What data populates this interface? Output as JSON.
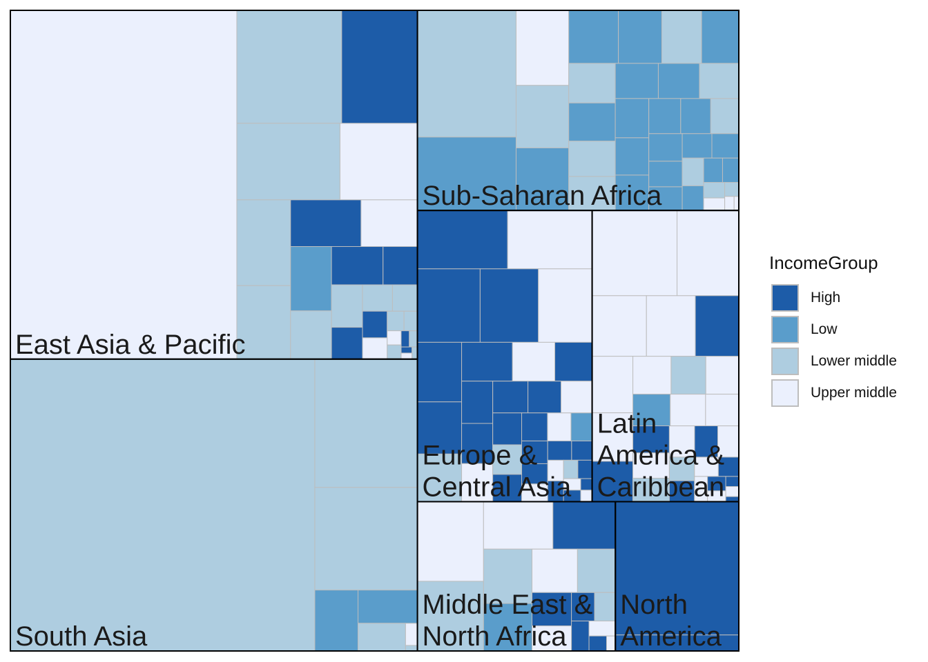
{
  "chart_data": {
    "type": "treemap",
    "legend": {
      "title": "IncomeGroup",
      "position": "right",
      "entries": [
        {
          "name": "High",
          "color": "#1d5ca8"
        },
        {
          "name": "Low",
          "color": "#5a9dcb"
        },
        {
          "name": "Lower middle",
          "color": "#aecde0"
        },
        {
          "name": "Upper middle",
          "color": "#ebf0fd"
        }
      ]
    },
    "colors": {
      "High": "#1d5ca8",
      "Low": "#5a9dcb",
      "Lower middle": "#aecde0",
      "Upper middle": "#ebf0fd",
      "tile_border": "#bdbdbd",
      "group_border": "#000000",
      "label_text": "#1a1a1a"
    },
    "groups": [
      {
        "label": "East Asia & Pacific",
        "value": 233,
        "tiles": [
          {
            "g": "Upper middle",
            "v": 120
          },
          {
            "g": "Lower middle",
            "v": 18
          },
          {
            "g": "High",
            "v": 13
          },
          {
            "g": "Lower middle",
            "v": 12
          },
          {
            "g": "Upper middle",
            "v": 9
          },
          {
            "g": "Lower middle",
            "v": 7
          },
          {
            "g": "Lower middle",
            "v": 6
          },
          {
            "g": "High",
            "v": 5
          },
          {
            "g": "Upper middle",
            "v": 4
          },
          {
            "g": "Low",
            "v": 4
          },
          {
            "g": "Lower middle",
            "v": 3
          },
          {
            "g": "High",
            "v": 3
          },
          {
            "g": "High",
            "v": 2
          },
          {
            "g": "Lower middle",
            "v": 2
          },
          {
            "g": "High",
            "v": 1.5
          },
          {
            "g": "Lower middle",
            "v": 1.2
          },
          {
            "g": "Lower middle",
            "v": 1
          },
          {
            "g": "High",
            "v": 1
          },
          {
            "g": "Upper middle",
            "v": 0.8
          },
          {
            "g": "Lower middle",
            "v": 0.5
          },
          {
            "g": "Lower middle",
            "v": 0.4
          },
          {
            "g": "Upper middle",
            "v": 0.3
          },
          {
            "g": "Lower middle",
            "v": 0.3
          },
          {
            "g": "High",
            "v": 0.2
          },
          {
            "g": "Lower middle",
            "v": 0.2
          },
          {
            "g": "High",
            "v": 0.1
          },
          {
            "g": "Upper middle",
            "v": 0.1
          },
          {
            "g": "Lower middle",
            "v": 0.1
          }
        ]
      },
      {
        "label": "South Asia",
        "value": 181,
        "tiles": [
          {
            "g": "Lower middle",
            "v": 135
          },
          {
            "g": "Lower middle",
            "v": 20
          },
          {
            "g": "Lower middle",
            "v": 16
          },
          {
            "g": "Low",
            "v": 4
          },
          {
            "g": "Low",
            "v": 3
          },
          {
            "g": "Lower middle",
            "v": 2
          },
          {
            "g": "Upper middle",
            "v": 0.4
          },
          {
            "g": "Lower middle",
            "v": 0.1
          }
        ]
      },
      {
        "label": "Sub-Saharan Africa",
        "value": 103,
        "tiles": [
          {
            "g": "Lower middle",
            "v": 19
          },
          {
            "g": "Low",
            "v": 11
          },
          {
            "g": "Upper middle",
            "v": 6
          },
          {
            "g": "Lower middle",
            "v": 5
          },
          {
            "g": "Low",
            "v": 5
          },
          {
            "g": "Low",
            "v": 4
          },
          {
            "g": "Low",
            "v": 3.5
          },
          {
            "g": "Lower middle",
            "v": 3.2
          },
          {
            "g": "Low",
            "v": 3
          },
          {
            "g": "Lower middle",
            "v": 2.8
          },
          {
            "g": "Low",
            "v": 2.7
          },
          {
            "g": "Lower middle",
            "v": 2.5
          },
          {
            "g": "Lower middle",
            "v": 2.4
          },
          {
            "g": "Low",
            "v": 2.3
          },
          {
            "g": "Low",
            "v": 2.2
          },
          {
            "g": "Lower middle",
            "v": 2.1
          },
          {
            "g": "Low",
            "v": 2
          },
          {
            "g": "Low",
            "v": 1.9
          },
          {
            "g": "Low",
            "v": 1.8
          },
          {
            "g": "Low",
            "v": 1.7
          },
          {
            "g": "Low",
            "v": 1.6
          },
          {
            "g": "Lower middle",
            "v": 1.5
          },
          {
            "g": "Low",
            "v": 1.4
          },
          {
            "g": "Low",
            "v": 1.3
          },
          {
            "g": "Low",
            "v": 1.2
          },
          {
            "g": "Low",
            "v": 1.1
          },
          {
            "g": "Low",
            "v": 1
          },
          {
            "g": "Lower middle",
            "v": 0.9
          },
          {
            "g": "Low",
            "v": 0.8
          },
          {
            "g": "Low",
            "v": 0.7
          },
          {
            "g": "Low",
            "v": 0.6
          },
          {
            "g": "Lower middle",
            "v": 0.5
          },
          {
            "g": "Upper middle",
            "v": 0.4
          },
          {
            "g": "Lower middle",
            "v": 0.3
          },
          {
            "g": "Upper middle",
            "v": 0.2
          },
          {
            "g": "Upper middle",
            "v": 0.1
          }
        ]
      },
      {
        "label": "Europe & Central Asia",
        "value": 85,
        "tiles": [
          {
            "g": "High",
            "v": 8
          },
          {
            "g": "Upper middle",
            "v": 7.5
          },
          {
            "g": "High",
            "v": 7
          },
          {
            "g": "High",
            "v": 6.5
          },
          {
            "g": "Upper middle",
            "v": 6
          },
          {
            "g": "High",
            "v": 4
          },
          {
            "g": "High",
            "v": 3.5
          },
          {
            "g": "Lower middle",
            "v": 3.2
          },
          {
            "g": "High",
            "v": 3
          },
          {
            "g": "Upper middle",
            "v": 2.5
          },
          {
            "g": "High",
            "v": 2.2
          },
          {
            "g": "High",
            "v": 2
          },
          {
            "g": "High",
            "v": 1.9
          },
          {
            "g": "Upper middle",
            "v": 1.8
          },
          {
            "g": "High",
            "v": 1.7
          },
          {
            "g": "High",
            "v": 1.6
          },
          {
            "g": "Upper middle",
            "v": 1.5
          },
          {
            "g": "High",
            "v": 1.4
          },
          {
            "g": "Lower middle",
            "v": 1.3
          },
          {
            "g": "High",
            "v": 1.2
          },
          {
            "g": "High",
            "v": 1.1
          },
          {
            "g": "Upper middle",
            "v": 1
          },
          {
            "g": "Low",
            "v": 0.9
          },
          {
            "g": "High",
            "v": 0.9
          },
          {
            "g": "High",
            "v": 0.8
          },
          {
            "g": "Upper middle",
            "v": 0.7
          },
          {
            "g": "High",
            "v": 0.7
          },
          {
            "g": "High",
            "v": 0.6
          },
          {
            "g": "Upper middle",
            "v": 0.5
          },
          {
            "g": "High",
            "v": 0.5
          },
          {
            "g": "Lower middle",
            "v": 0.4
          },
          {
            "g": "High",
            "v": 0.4
          },
          {
            "g": "Upper middle",
            "v": 0.3
          },
          {
            "g": "High",
            "v": 0.3
          },
          {
            "g": "High",
            "v": 0.2
          },
          {
            "g": "Upper middle",
            "v": 0.2
          }
        ]
      },
      {
        "label": "Latin America & Caribbean",
        "value": 63,
        "tiles": [
          {
            "g": "Upper middle",
            "v": 11
          },
          {
            "g": "Upper middle",
            "v": 8
          },
          {
            "g": "Upper middle",
            "v": 5
          },
          {
            "g": "Upper middle",
            "v": 4.5
          },
          {
            "g": "High",
            "v": 4
          },
          {
            "g": "Upper middle",
            "v": 3.5
          },
          {
            "g": "Upper middle",
            "v": 3
          },
          {
            "g": "High",
            "v": 2.5
          },
          {
            "g": "Upper middle",
            "v": 2.2
          },
          {
            "g": "Lower middle",
            "v": 2
          },
          {
            "g": "Upper middle",
            "v": 1.9
          },
          {
            "g": "Low",
            "v": 1.8
          },
          {
            "g": "Upper middle",
            "v": 1.7
          },
          {
            "g": "Upper middle",
            "v": 1.6
          },
          {
            "g": "High",
            "v": 1.5
          },
          {
            "g": "Upper middle",
            "v": 1.4
          },
          {
            "g": "Lower middle",
            "v": 1.3
          },
          {
            "g": "Upper middle",
            "v": 1.2
          },
          {
            "g": "High",
            "v": 1.1
          },
          {
            "g": "Upper middle",
            "v": 1
          },
          {
            "g": "Lower middle",
            "v": 0.9
          },
          {
            "g": "High",
            "v": 0.8
          },
          {
            "g": "Upper middle",
            "v": 0.7
          },
          {
            "g": "High",
            "v": 0.6
          },
          {
            "g": "Upper middle",
            "v": 0.5
          },
          {
            "g": "High",
            "v": 0.4
          },
          {
            "g": "Upper middle",
            "v": 0.3
          },
          {
            "g": "High",
            "v": 0.2
          },
          {
            "g": "Upper middle",
            "v": 0.2
          },
          {
            "g": "High",
            "v": 0.1
          }
        ]
      },
      {
        "label": "Middle East & North Africa",
        "value": 45,
        "tiles": [
          {
            "g": "Upper middle",
            "v": 8
          },
          {
            "g": "Lower middle",
            "v": 7
          },
          {
            "g": "Upper middle",
            "v": 5
          },
          {
            "g": "High",
            "v": 4.5
          },
          {
            "g": "Lower middle",
            "v": 4
          },
          {
            "g": "Low",
            "v": 3.5
          },
          {
            "g": "Upper middle",
            "v": 3
          },
          {
            "g": "Lower middle",
            "v": 2.5
          },
          {
            "g": "High",
            "v": 2
          },
          {
            "g": "Upper middle",
            "v": 1.5
          },
          {
            "g": "High",
            "v": 1
          },
          {
            "g": "Lower middle",
            "v": 0.9
          },
          {
            "g": "High",
            "v": 0.8
          },
          {
            "g": "Upper middle",
            "v": 0.6
          },
          {
            "g": "High",
            "v": 0.4
          },
          {
            "g": "Upper middle",
            "v": 0.2
          }
        ]
      },
      {
        "label": "North America",
        "value": 28,
        "tiles": [
          {
            "g": "High",
            "v": 25
          },
          {
            "g": "High",
            "v": 3
          }
        ]
      }
    ]
  }
}
